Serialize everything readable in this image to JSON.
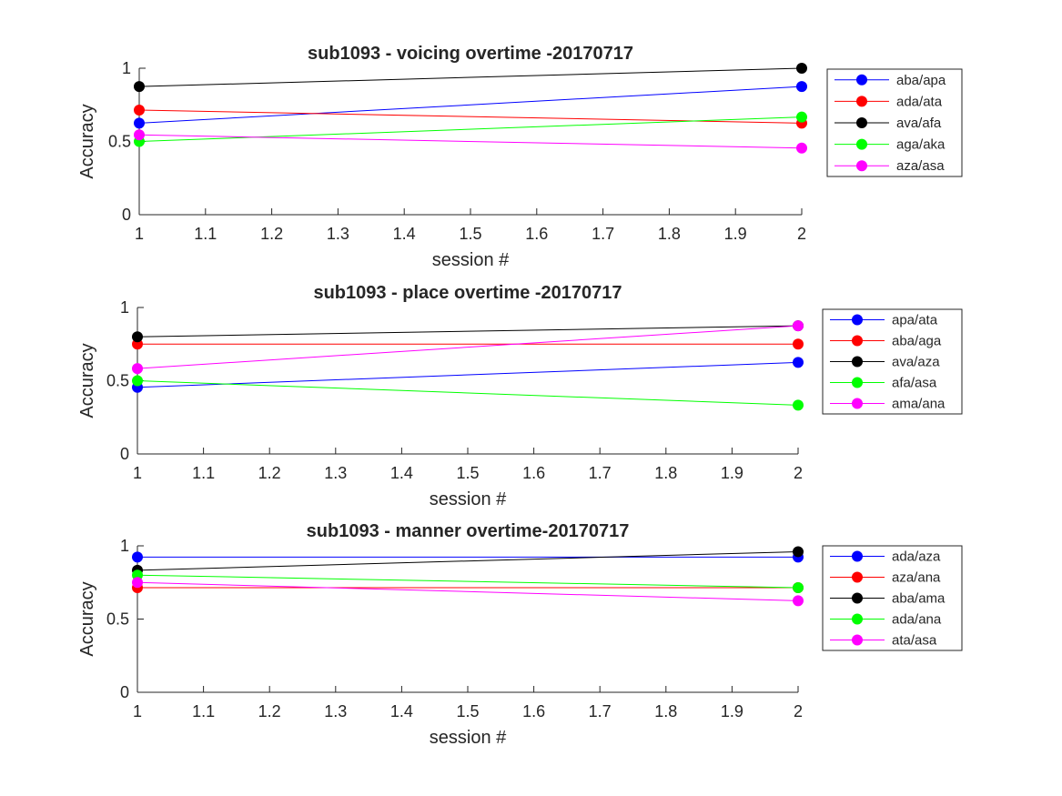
{
  "chart_data": [
    {
      "type": "line",
      "title": "sub1093 - voicing overtime -20170717",
      "xlabel": "session #",
      "ylabel": "Accuracy",
      "xlim": [
        1,
        2
      ],
      "ylim": [
        0,
        1
      ],
      "x": [
        1,
        2
      ],
      "xticks": [
        "1",
        "1.1",
        "1.2",
        "1.3",
        "1.4",
        "1.5",
        "1.6",
        "1.7",
        "1.8",
        "1.9",
        "2"
      ],
      "yticks": [
        "0",
        "0.5",
        "1"
      ],
      "legend_position": "outside-right",
      "grid": false,
      "series": [
        {
          "name": "aba/apa",
          "color": "#0000ff",
          "values": [
            0.625,
            0.875
          ]
        },
        {
          "name": "ada/ata",
          "color": "#ff0000",
          "values": [
            0.714,
            0.625
          ]
        },
        {
          "name": "ava/afa",
          "color": "#000000",
          "values": [
            0.875,
            1.0
          ]
        },
        {
          "name": "aga/aka",
          "color": "#00ff00",
          "values": [
            0.5,
            0.667
          ]
        },
        {
          "name": "aza/asa",
          "color": "#ff00ff",
          "values": [
            0.545,
            0.455
          ]
        }
      ]
    },
    {
      "type": "line",
      "title": "sub1093 - place overtime -20170717",
      "xlabel": "session #",
      "ylabel": "Accuracy",
      "xlim": [
        1,
        2
      ],
      "ylim": [
        0,
        1
      ],
      "x": [
        1,
        2
      ],
      "xticks": [
        "1",
        "1.1",
        "1.2",
        "1.3",
        "1.4",
        "1.5",
        "1.6",
        "1.7",
        "1.8",
        "1.9",
        "2"
      ],
      "yticks": [
        "0",
        "0.5",
        "1"
      ],
      "legend_position": "outside-right",
      "grid": false,
      "series": [
        {
          "name": "apa/ata",
          "color": "#0000ff",
          "values": [
            0.455,
            0.625
          ]
        },
        {
          "name": "aba/aga",
          "color": "#ff0000",
          "values": [
            0.75,
            0.75
          ]
        },
        {
          "name": "ava/aza",
          "color": "#000000",
          "values": [
            0.8,
            0.875
          ]
        },
        {
          "name": "afa/asa",
          "color": "#00ff00",
          "values": [
            0.5,
            0.333
          ]
        },
        {
          "name": "ama/ana",
          "color": "#ff00ff",
          "values": [
            0.583,
            0.875
          ]
        }
      ]
    },
    {
      "type": "line",
      "title": "sub1093 - manner overtime-20170717",
      "xlabel": "session #",
      "ylabel": "Accuracy",
      "xlim": [
        1,
        2
      ],
      "ylim": [
        0,
        1
      ],
      "x": [
        1,
        2
      ],
      "xticks": [
        "1",
        "1.1",
        "1.2",
        "1.3",
        "1.4",
        "1.5",
        "1.6",
        "1.7",
        "1.8",
        "1.9",
        "2"
      ],
      "yticks": [
        "0",
        "0.5",
        "1"
      ],
      "legend_position": "outside-right",
      "grid": false,
      "series": [
        {
          "name": "ada/aza",
          "color": "#0000ff",
          "values": [
            0.923,
            0.923
          ]
        },
        {
          "name": "aza/ana",
          "color": "#ff0000",
          "values": [
            0.714,
            0.714
          ]
        },
        {
          "name": "aba/ama",
          "color": "#000000",
          "values": [
            0.833,
            0.96
          ]
        },
        {
          "name": "ada/ana",
          "color": "#00ff00",
          "values": [
            0.8,
            0.714
          ]
        },
        {
          "name": "ata/asa",
          "color": "#ff00ff",
          "values": [
            0.75,
            0.625
          ]
        }
      ]
    }
  ]
}
